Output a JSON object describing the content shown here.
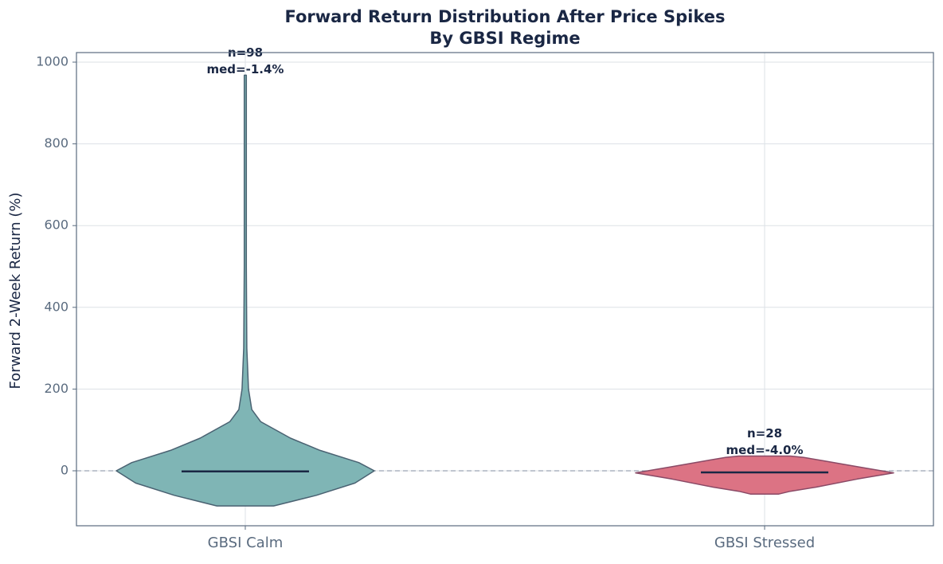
{
  "chart_data": {
    "type": "violin",
    "title": "Forward Return Distribution After Price Spikes",
    "subtitle": "By GBSI Regime",
    "y_label": "Forward 2-Week Return (%)",
    "ylim": [
      -134.5,
      1023.4
    ],
    "yticks": [
      0,
      200,
      400,
      600,
      800,
      1000
    ],
    "grid": true,
    "reference_line": 0,
    "series": [
      {
        "name": "GBSI Calm",
        "color": "#7fb5b5",
        "edge": "#4a6272",
        "n_label": "n=98",
        "median": {
          "value": -1.4,
          "label": "med=-1.4%"
        },
        "profile_y": [
          -86,
          -60,
          -30,
          0,
          20,
          50,
          80,
          120,
          150,
          200,
          300,
          500,
          800,
          968
        ],
        "profile_width": [
          0.22,
          0.55,
          0.85,
          1,
          0.88,
          0.58,
          0.35,
          0.12,
          0.05,
          0.025,
          0.012,
          0.008,
          0.008,
          0.008
        ]
      },
      {
        "name": "GBSI Stressed",
        "color": "#dc7384",
        "edge": "#8a4a66",
        "n_label": "n=28",
        "median": {
          "value": -4.0,
          "label": "med=-4.0%"
        },
        "profile_y": [
          -57,
          -50,
          -40,
          -20,
          -5,
          10,
          25,
          33,
          36
        ],
        "profile_width": [
          0.11,
          0.2,
          0.4,
          0.72,
          1,
          0.72,
          0.45,
          0.3,
          0.2
        ]
      }
    ]
  }
}
